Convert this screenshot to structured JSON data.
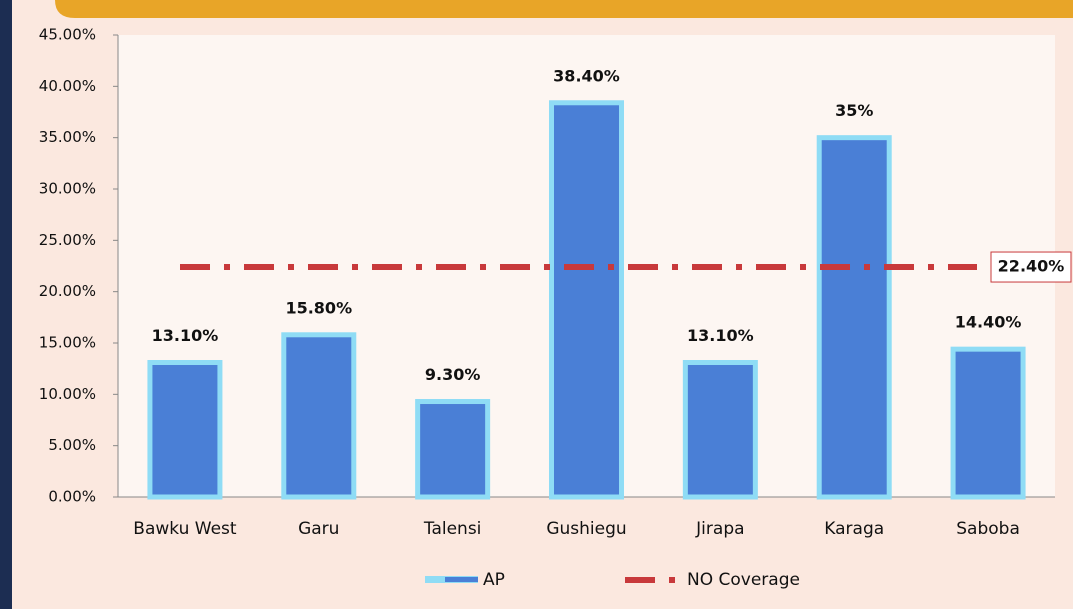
{
  "chart_data": {
    "type": "bar",
    "categories": [
      "Bawku West",
      "Garu",
      "Talensi",
      "Gushiegu",
      "Jirapa",
      "Karaga",
      "Saboba"
    ],
    "series": [
      {
        "name": "AP",
        "color": "#4a7fd6",
        "values": [
          13.1,
          15.8,
          9.3,
          38.4,
          13.1,
          35,
          14.4
        ],
        "value_labels": [
          "13.10%",
          "15.80%",
          "9.30%",
          "38.40%",
          "13.10%",
          "35%",
          "14.40%"
        ]
      }
    ],
    "reference_lines": [
      {
        "name": "NO Coverage",
        "color": "#c8393b",
        "value": 22.4,
        "value_label": "22.40%"
      }
    ],
    "ylim": [
      0,
      45
    ],
    "yticks": [
      {
        "value": 0,
        "label": "0.00%"
      },
      {
        "value": 5,
        "label": "5.00%"
      },
      {
        "value": 10,
        "label": "10.00%"
      },
      {
        "value": 15,
        "label": "15.00%"
      },
      {
        "value": 20,
        "label": "20.00%"
      },
      {
        "value": 25,
        "label": "25.00%"
      },
      {
        "value": 30,
        "label": "30.00%"
      },
      {
        "value": 35,
        "label": "35.00%"
      },
      {
        "value": 40,
        "label": "40.00%"
      },
      {
        "value": 45,
        "label": "45.00%"
      }
    ],
    "legend": "bottom"
  }
}
